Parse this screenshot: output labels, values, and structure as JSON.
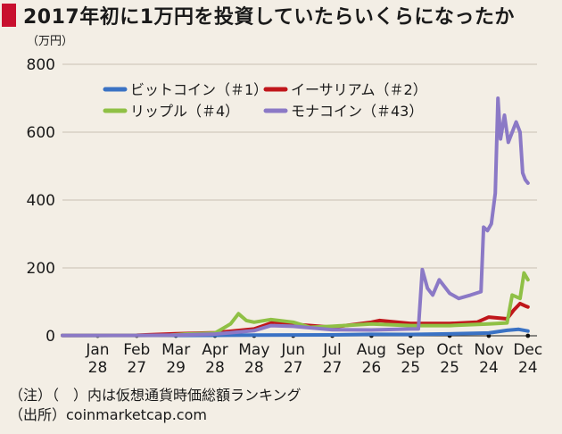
{
  "title": "2017年初に1万円を投資していたらいくらになったか",
  "notes": [
    "（注）（　）内は仮想通貨時価総額ランキング",
    "（出所）coinmarketcap.com"
  ],
  "colors": {
    "bitcoin": "#3a72c4",
    "ethereum": "#c0161b",
    "ripple": "#8fc045",
    "monacoin": "#8b79c6",
    "grid": "#c9c0b3",
    "axis": "#444444",
    "title_marker": "#c8102e"
  },
  "chart_data": {
    "type": "line",
    "title": "2017年初に1万円を投資していたらいくらになったか",
    "ylabel": "（万円）",
    "ylim": [
      0,
      800
    ],
    "yticks": [
      0,
      200,
      400,
      600,
      800
    ],
    "grid": true,
    "legend_placement": "top-left",
    "xticks": [
      {
        "date": "2017-01-28",
        "month": "Jan",
        "day": "28"
      },
      {
        "date": "2017-02-27",
        "month": "Feb",
        "day": "27"
      },
      {
        "date": "2017-03-29",
        "month": "Mar",
        "day": "29"
      },
      {
        "date": "2017-04-28",
        "month": "Apr",
        "day": "28"
      },
      {
        "date": "2017-05-28",
        "month": "May",
        "day": "28"
      },
      {
        "date": "2017-06-27",
        "month": "Jun",
        "day": "27"
      },
      {
        "date": "2017-07-27",
        "month": "Jul",
        "day": "27"
      },
      {
        "date": "2017-08-26",
        "month": "Aug",
        "day": "26"
      },
      {
        "date": "2017-09-25",
        "month": "Sep",
        "day": "25"
      },
      {
        "date": "2017-10-25",
        "month": "Oct",
        "day": "25"
      },
      {
        "date": "2017-11-24",
        "month": "Nov",
        "day": "24"
      },
      {
        "date": "2017-12-24",
        "month": "Dec",
        "day": "24"
      }
    ],
    "series": [
      {
        "name": "ビットコイン（＃1）",
        "color_key": "bitcoin",
        "points": [
          [
            "2017-01-01",
            1
          ],
          [
            "2017-01-28",
            1
          ],
          [
            "2017-02-27",
            1.2
          ],
          [
            "2017-03-29",
            1.1
          ],
          [
            "2017-04-28",
            1.4
          ],
          [
            "2017-05-28",
            2.2
          ],
          [
            "2017-06-27",
            2.5
          ],
          [
            "2017-07-27",
            2.6
          ],
          [
            "2017-08-26",
            4.2
          ],
          [
            "2017-09-25",
            3.9
          ],
          [
            "2017-10-25",
            5.6
          ],
          [
            "2017-11-24",
            8.2
          ],
          [
            "2017-12-08",
            16
          ],
          [
            "2017-12-17",
            19
          ],
          [
            "2017-12-24",
            14
          ]
        ]
      },
      {
        "name": "イーサリアム（＃2）",
        "color_key": "ethereum",
        "points": [
          [
            "2017-01-01",
            1
          ],
          [
            "2017-01-28",
            1.3
          ],
          [
            "2017-02-27",
            1.6
          ],
          [
            "2017-03-29",
            6
          ],
          [
            "2017-04-28",
            9
          ],
          [
            "2017-05-20",
            17
          ],
          [
            "2017-05-28",
            20
          ],
          [
            "2017-06-12",
            40
          ],
          [
            "2017-06-27",
            34
          ],
          [
            "2017-07-27",
            25
          ],
          [
            "2017-08-26",
            40
          ],
          [
            "2017-09-01",
            45
          ],
          [
            "2017-09-25",
            36
          ],
          [
            "2017-10-25",
            36
          ],
          [
            "2017-11-15",
            40
          ],
          [
            "2017-11-24",
            55
          ],
          [
            "2017-12-08",
            50
          ],
          [
            "2017-12-13",
            75
          ],
          [
            "2017-12-18",
            95
          ],
          [
            "2017-12-22",
            88
          ],
          [
            "2017-12-24",
            85
          ]
        ]
      },
      {
        "name": "リップル（＃4）",
        "color_key": "ripple",
        "points": [
          [
            "2017-01-01",
            1
          ],
          [
            "2017-01-28",
            1
          ],
          [
            "2017-02-27",
            1
          ],
          [
            "2017-03-25",
            1.5
          ],
          [
            "2017-04-05",
            5
          ],
          [
            "2017-04-28",
            8
          ],
          [
            "2017-05-10",
            35
          ],
          [
            "2017-05-16",
            65
          ],
          [
            "2017-05-22",
            45
          ],
          [
            "2017-05-28",
            40
          ],
          [
            "2017-06-10",
            48
          ],
          [
            "2017-06-27",
            40
          ],
          [
            "2017-07-10",
            25
          ],
          [
            "2017-07-27",
            28
          ],
          [
            "2017-08-26",
            35
          ],
          [
            "2017-09-25",
            30
          ],
          [
            "2017-10-25",
            30
          ],
          [
            "2017-11-24",
            35
          ],
          [
            "2017-12-08",
            38
          ],
          [
            "2017-12-12",
            120
          ],
          [
            "2017-12-18",
            110
          ],
          [
            "2017-12-21",
            185
          ],
          [
            "2017-12-24",
            165
          ]
        ]
      },
      {
        "name": "モナコイン（＃43）",
        "color_key": "monacoin",
        "points": [
          [
            "2017-01-01",
            1
          ],
          [
            "2017-01-28",
            1
          ],
          [
            "2017-02-27",
            1
          ],
          [
            "2017-03-29",
            2
          ],
          [
            "2017-04-28",
            5
          ],
          [
            "2017-05-28",
            15
          ],
          [
            "2017-06-10",
            30
          ],
          [
            "2017-06-27",
            28
          ],
          [
            "2017-07-27",
            18
          ],
          [
            "2017-08-26",
            17
          ],
          [
            "2017-09-25",
            20
          ],
          [
            "2017-10-01",
            20
          ],
          [
            "2017-10-04",
            195
          ],
          [
            "2017-10-08",
            140
          ],
          [
            "2017-10-12",
            120
          ],
          [
            "2017-10-17",
            165
          ],
          [
            "2017-10-25",
            125
          ],
          [
            "2017-11-01",
            110
          ],
          [
            "2017-11-10",
            120
          ],
          [
            "2017-11-18",
            130
          ],
          [
            "2017-11-20",
            320
          ],
          [
            "2017-11-23",
            310
          ],
          [
            "2017-11-26",
            330
          ],
          [
            "2017-11-29",
            420
          ],
          [
            "2017-12-01",
            700
          ],
          [
            "2017-12-03",
            580
          ],
          [
            "2017-12-06",
            650
          ],
          [
            "2017-12-09",
            570
          ],
          [
            "2017-12-12",
            600
          ],
          [
            "2017-12-15",
            630
          ],
          [
            "2017-12-18",
            600
          ],
          [
            "2017-12-20",
            480
          ],
          [
            "2017-12-22",
            460
          ],
          [
            "2017-12-24",
            450
          ]
        ]
      }
    ]
  }
}
